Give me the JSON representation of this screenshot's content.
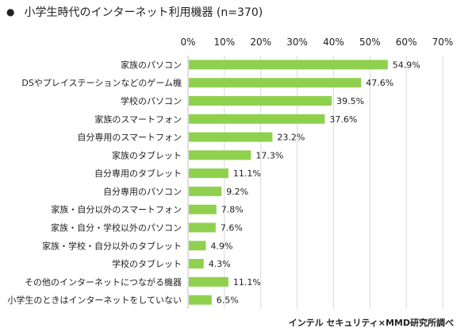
{
  "header": {
    "bullet": "●",
    "title": "小学生時代のインターネット利用機器 (n=370)"
  },
  "source": "インテル セキュリティ×MMD研究所調べ",
  "colors": {
    "bar": "#8fd14f",
    "grid": "#d9d9d9",
    "axis": "#bfbfbf",
    "text": "#222222"
  },
  "chart_data": {
    "type": "bar",
    "orientation": "horizontal",
    "xlim": [
      0,
      70
    ],
    "ticks": [
      0,
      10,
      20,
      30,
      40,
      50,
      60,
      70
    ],
    "tick_labels": [
      "0%",
      "10%",
      "20%",
      "30%",
      "40%",
      "50%",
      "60%",
      "70%"
    ],
    "grid": true,
    "categories": [
      "家族のパソコン",
      "DSやプレイステーションなどのゲーム機",
      "学校のパソコン",
      "家族のスマートフォン",
      "自分専用のスマートフォン",
      "家族のタブレット",
      "自分専用のタブレット",
      "自分専用のパソコン",
      "家族・自分以外のスマートフォン",
      "家族・自分・学校以外のパソコン",
      "家族・学校・自分以外のタブレット",
      "学校のタブレット",
      "その他のインターネットにつながる機器",
      "小学生のときはインターネットをしていない"
    ],
    "values": [
      54.9,
      47.6,
      39.5,
      37.6,
      23.2,
      17.3,
      11.1,
      9.2,
      7.8,
      7.6,
      4.9,
      4.3,
      11.1,
      6.5
    ],
    "value_labels": [
      "54.9%",
      "47.6%",
      "39.5%",
      "37.6%",
      "23.2%",
      "17.3%",
      "11.1%",
      "9.2%",
      "7.8%",
      "7.6%",
      "4.9%",
      "4.3%",
      "11.1%",
      "6.5%"
    ]
  }
}
